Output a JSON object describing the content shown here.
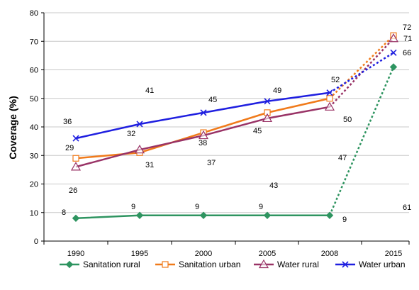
{
  "chart_data": {
    "type": "line",
    "ylabel": "Coverage (%)",
    "xlabel": "",
    "ylim": [
      0,
      80
    ],
    "yticks": [
      0,
      10,
      20,
      30,
      40,
      50,
      60,
      70,
      80
    ],
    "categories": [
      "1990",
      "1995",
      "2000",
      "2005",
      "2008",
      "2015"
    ],
    "grid": "horizontal",
    "legend_position": "bottom",
    "projection_note_style": "dotted segment from 2008 to 2015",
    "series": [
      {
        "name": "Sanitation rural",
        "color": "#2e9460",
        "marker": "diamond",
        "values": [
          8,
          9,
          9,
          9,
          9,
          61
        ],
        "labels": [
          "8",
          "9",
          "9",
          "9",
          "9",
          "61"
        ]
      },
      {
        "name": "Sanitation urban",
        "color": "#f07a1a",
        "marker": "square",
        "values": [
          29,
          31,
          38,
          45,
          50,
          72
        ],
        "labels": [
          "29",
          "31",
          "38",
          "45",
          "50",
          "72"
        ]
      },
      {
        "name": "Water rural",
        "color": "#993366",
        "marker": "triangle",
        "values": [
          26,
          32,
          37,
          43,
          47,
          71
        ],
        "labels": [
          "26",
          "32",
          "37",
          "43",
          "47",
          "71"
        ]
      },
      {
        "name": "Water urban",
        "color": "#1f1fe0",
        "marker": "x",
        "values": [
          36,
          41,
          45,
          49,
          52,
          66
        ],
        "labels": [
          "36",
          "41",
          "45",
          "49",
          "52",
          "66"
        ]
      }
    ]
  }
}
